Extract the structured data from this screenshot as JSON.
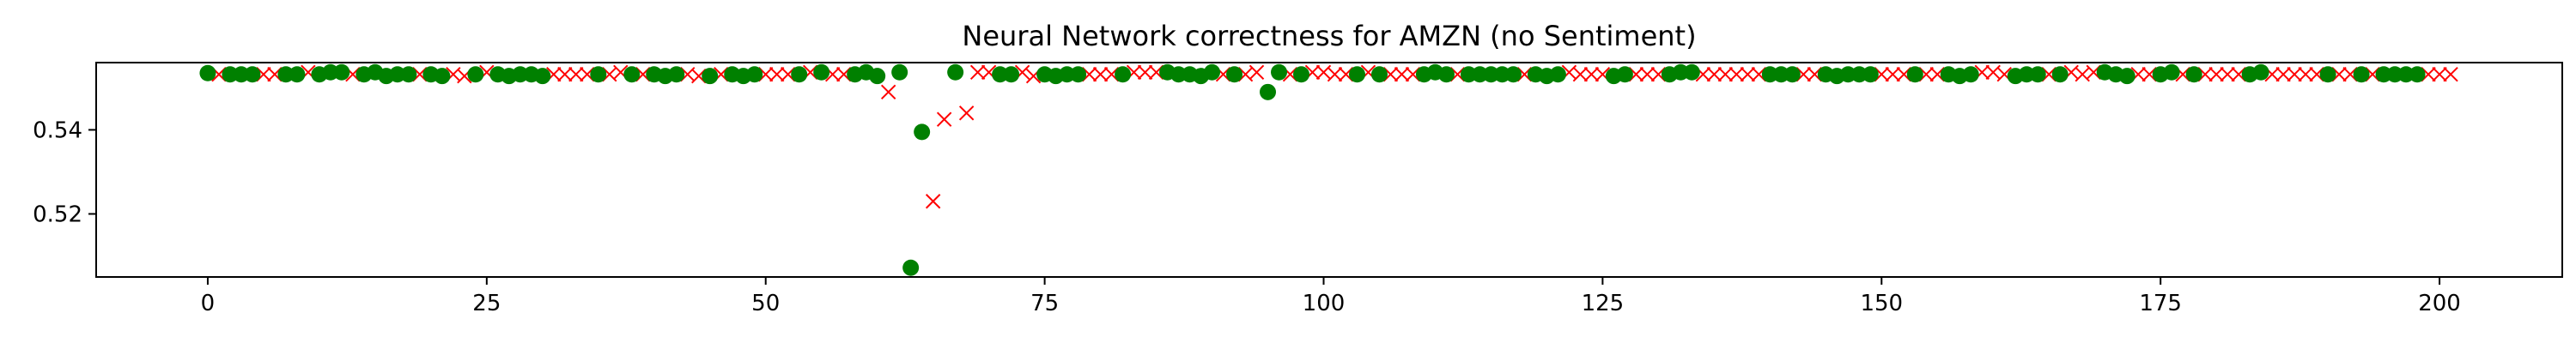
{
  "chart_data": {
    "type": "scatter",
    "title": "Neural Network correctness for AMZN (no Sentiment)",
    "xlabel": "",
    "ylabel": "",
    "xlim": [
      -10,
      211
    ],
    "ylim": [
      0.505,
      0.556
    ],
    "xticks": [
      0,
      25,
      50,
      75,
      100,
      125,
      150,
      175,
      200
    ],
    "yticks": [
      0.52,
      0.54
    ],
    "ytick_labels": [
      "0.52",
      "0.54"
    ],
    "grid": false,
    "legend": "none",
    "correct_color": "#008000",
    "incorrect_color": "#ff0000",
    "correct_marker": "circle",
    "incorrect_marker": "x",
    "correct_x": [
      0,
      2,
      3,
      4,
      7,
      8,
      10,
      11,
      12,
      14,
      15,
      16,
      17,
      18,
      20,
      21,
      24,
      26,
      27,
      28,
      29,
      30,
      35,
      38,
      40,
      41,
      42,
      45,
      47,
      48,
      49,
      53,
      55,
      58,
      59,
      60,
      62,
      63,
      64,
      67,
      71,
      72,
      75,
      76,
      77,
      78,
      82,
      86,
      87,
      88,
      89,
      90,
      92,
      95,
      96,
      98,
      103,
      105,
      109,
      110,
      111,
      113,
      114,
      115,
      116,
      117,
      119,
      120,
      121,
      126,
      127,
      131,
      132,
      133,
      140,
      141,
      142,
      145,
      146,
      147,
      148,
      149,
      153,
      156,
      157,
      158,
      162,
      163,
      164,
      166,
      170,
      171,
      172,
      175,
      176,
      178,
      183,
      184,
      190,
      193,
      195,
      196,
      197,
      198
    ],
    "correct_y": [
      0.5535,
      0.5532,
      0.5532,
      0.5532,
      0.5532,
      0.5532,
      0.5532,
      0.5537,
      0.5537,
      0.5532,
      0.5537,
      0.5528,
      0.5532,
      0.5532,
      0.5532,
      0.5528,
      0.5532,
      0.5532,
      0.5528,
      0.5532,
      0.5532,
      0.5528,
      0.5532,
      0.5532,
      0.5532,
      0.5528,
      0.5532,
      0.5528,
      0.5532,
      0.5528,
      0.5532,
      0.5532,
      0.5537,
      0.5532,
      0.5537,
      0.5528,
      0.5537,
      0.5072,
      0.5395,
      0.5537,
      0.5532,
      0.5532,
      0.5532,
      0.5528,
      0.5532,
      0.5532,
      0.5532,
      0.5537,
      0.5532,
      0.5532,
      0.5528,
      0.5537,
      0.5532,
      0.549,
      0.5537,
      0.5532,
      0.5532,
      0.5532,
      0.5532,
      0.5537,
      0.5532,
      0.5532,
      0.5532,
      0.5532,
      0.5532,
      0.5532,
      0.5532,
      0.5528,
      0.5532,
      0.5528,
      0.5532,
      0.5532,
      0.5537,
      0.5537,
      0.5532,
      0.5532,
      0.5532,
      0.5532,
      0.5528,
      0.5532,
      0.5532,
      0.5532,
      0.5532,
      0.5532,
      0.5528,
      0.5532,
      0.5528,
      0.5532,
      0.5532,
      0.5532,
      0.5537,
      0.5532,
      0.5528,
      0.5532,
      0.5537,
      0.5532,
      0.5532,
      0.5537,
      0.5532,
      0.5532,
      0.5532,
      0.5532,
      0.5532,
      0.5532
    ],
    "incorrect_x": [
      1,
      5,
      6,
      9,
      13,
      19,
      22,
      23,
      25,
      31,
      32,
      33,
      34,
      36,
      37,
      39,
      43,
      44,
      46,
      50,
      51,
      52,
      54,
      56,
      57,
      61,
      65,
      66,
      68,
      69,
      70,
      73,
      74,
      79,
      80,
      81,
      83,
      84,
      85,
      91,
      93,
      94,
      97,
      99,
      100,
      101,
      102,
      104,
      106,
      107,
      108,
      112,
      118,
      122,
      123,
      124,
      125,
      128,
      129,
      130,
      134,
      135,
      136,
      137,
      138,
      139,
      143,
      144,
      150,
      151,
      152,
      154,
      155,
      159,
      160,
      161,
      165,
      167,
      168,
      169,
      173,
      174,
      177,
      179,
      180,
      181,
      182,
      185,
      186,
      187,
      188,
      189,
      191,
      192,
      194,
      199,
      200,
      201
    ],
    "incorrect_y": [
      0.5532,
      0.5532,
      0.5532,
      0.5537,
      0.5532,
      0.5532,
      0.5532,
      0.5528,
      0.5537,
      0.5532,
      0.5532,
      0.5532,
      0.5532,
      0.5532,
      0.5537,
      0.5532,
      0.5532,
      0.5528,
      0.5532,
      0.5532,
      0.5532,
      0.5532,
      0.5537,
      0.5532,
      0.5532,
      0.549,
      0.523,
      0.5425,
      0.544,
      0.5537,
      0.5537,
      0.5537,
      0.5528,
      0.5532,
      0.5532,
      0.5532,
      0.5537,
      0.5537,
      0.5537,
      0.5532,
      0.5532,
      0.5537,
      0.5532,
      0.5537,
      0.5537,
      0.5532,
      0.5532,
      0.5537,
      0.5532,
      0.5532,
      0.5532,
      0.5532,
      0.5532,
      0.5537,
      0.5532,
      0.5532,
      0.5532,
      0.5532,
      0.5532,
      0.5532,
      0.5532,
      0.5532,
      0.5532,
      0.5532,
      0.5532,
      0.5532,
      0.5532,
      0.5532,
      0.5532,
      0.5532,
      0.5532,
      0.5532,
      0.5532,
      0.5537,
      0.5537,
      0.5532,
      0.5532,
      0.5537,
      0.5532,
      0.5537,
      0.5532,
      0.5532,
      0.5532,
      0.5532,
      0.5532,
      0.5532,
      0.5532,
      0.5532,
      0.5532,
      0.5532,
      0.5532,
      0.5532,
      0.5532,
      0.5532,
      0.5532,
      0.5532,
      0.5532,
      0.5532
    ]
  }
}
